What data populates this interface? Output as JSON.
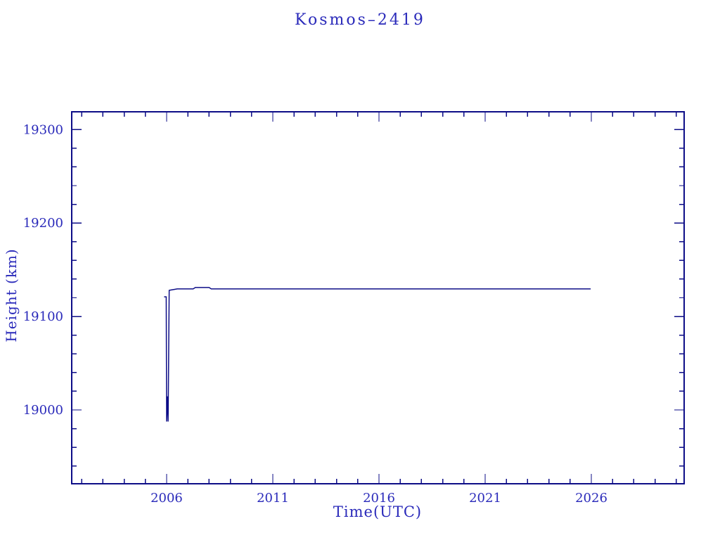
{
  "page": {
    "background": "#ffffff"
  },
  "chart_data": {
    "type": "line",
    "title": "Kosmos–2419",
    "xlabel": "Time(UTC)",
    "ylabel": "Height (km)",
    "xlim": [
      2001.53,
      2030.37
    ],
    "ylim": [
      18921,
      19319
    ],
    "x_major_ticks": [
      2006,
      2011,
      2016,
      2021,
      2026
    ],
    "x_minor_range": [
      2002,
      2030
    ],
    "x_minor_step": 1,
    "y_major_ticks": [
      19000,
      19100,
      19200,
      19300
    ],
    "y_minor_range": [
      18940,
      19300
    ],
    "y_minor_step": 20,
    "grid": false,
    "ticks_on_all_sides": true,
    "legend": "none",
    "colors": {
      "text": "#2a2aba",
      "axis": "#0d0d87",
      "line": "#0d0d87",
      "background": "#ffffff"
    },
    "series": [
      {
        "name": "height",
        "points": [
          [
            2005.9,
            19121
          ],
          [
            2005.98,
            19121
          ],
          [
            2006.0,
            18988
          ],
          [
            2006.04,
            19014
          ],
          [
            2006.07,
            18988
          ],
          [
            2006.12,
            19128
          ],
          [
            2006.5,
            19129.5
          ],
          [
            2007.25,
            19129.5
          ],
          [
            2007.35,
            19131
          ],
          [
            2008.0,
            19131
          ],
          [
            2008.1,
            19129.5
          ],
          [
            2025.95,
            19129.5
          ]
        ]
      }
    ]
  }
}
